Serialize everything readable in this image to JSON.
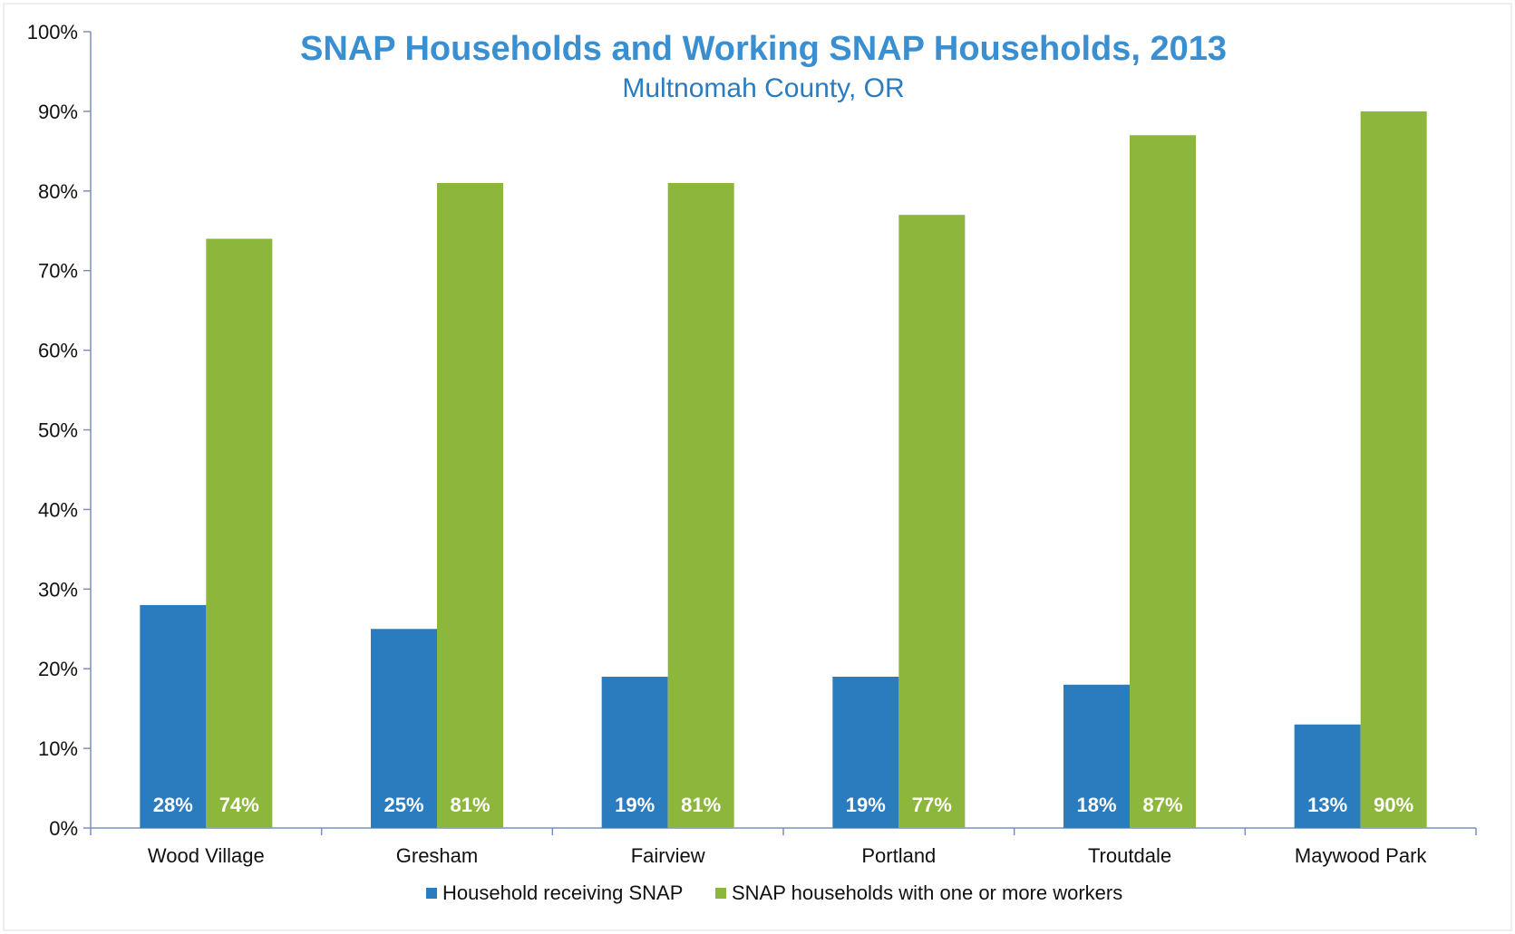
{
  "chart_data": {
    "type": "bar",
    "title": "SNAP Households and Working SNAP Households, 2013",
    "subtitle": "Multnomah County, OR",
    "xlabel": "",
    "ylabel": "",
    "categories": [
      "Wood Village",
      "Gresham",
      "Fairview",
      "Portland",
      "Troutdale",
      "Maywood Park"
    ],
    "series": [
      {
        "name": "Household receiving SNAP",
        "color": "#2b7bbf",
        "values": [
          28,
          25,
          19,
          19,
          18,
          13
        ],
        "labels": [
          "28%",
          "25%",
          "19%",
          "19%",
          "18%",
          "13%"
        ]
      },
      {
        "name": "SNAP households with one or more workers",
        "color": "#8cb63c",
        "values": [
          74,
          81,
          81,
          77,
          87,
          90
        ],
        "labels": [
          "74%",
          "81%",
          "81%",
          "77%",
          "87%",
          "90%"
        ]
      }
    ],
    "ylim": [
      0,
      100
    ],
    "yticks": [
      "0%",
      "10%",
      "20%",
      "30%",
      "40%",
      "50%",
      "60%",
      "70%",
      "80%",
      "90%",
      "100%"
    ],
    "grid": false,
    "legend_position": "bottom",
    "title_color": "#3a8fd0",
    "subtitle_color": "#2b7bbf",
    "axis_color": "#7b8fc0"
  }
}
